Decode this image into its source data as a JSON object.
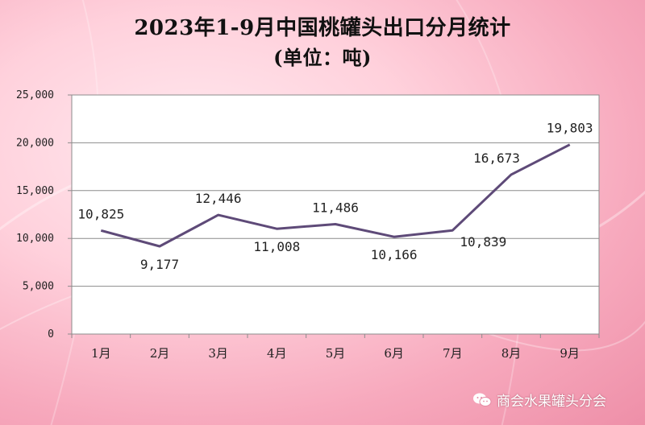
{
  "chart_data": {
    "type": "line",
    "title": "2023年1-9月中国桃罐头出口分月统计",
    "subtitle": "(单位：吨)",
    "categories": [
      "1月",
      "2月",
      "3月",
      "4月",
      "5月",
      "6月",
      "7月",
      "8月",
      "9月"
    ],
    "series": [
      {
        "values": [
          10825,
          9177,
          12446,
          11008,
          11486,
          10166,
          10839,
          16673,
          19803
        ]
      }
    ],
    "data_labels": [
      "10,825",
      "9,177",
      "12,446",
      "11,008",
      "11,486",
      "10,166",
      "10,839",
      "16,673",
      "19,803"
    ],
    "yticks": [
      "0",
      "5,000",
      "10,000",
      "15,000",
      "20,000",
      "25,000"
    ],
    "ylim": [
      0,
      25000
    ],
    "grid": true,
    "line_color": "#5e4a78"
  },
  "watermark": {
    "text": "商会水果罐头分会",
    "icon": "wechat-icon"
  }
}
